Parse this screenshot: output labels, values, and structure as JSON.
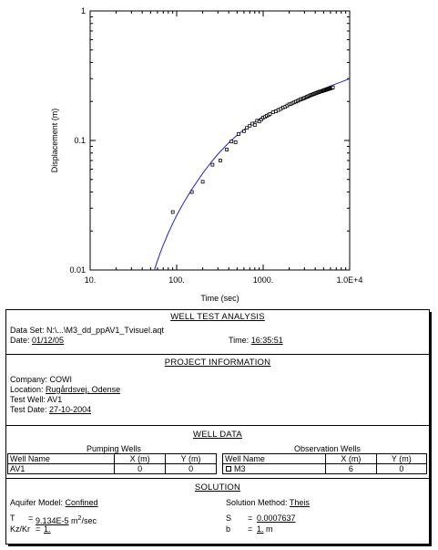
{
  "chart_data": {
    "type": "scatter",
    "title": "",
    "xlabel": "Time (sec)",
    "ylabel": "Displacement (m)",
    "x_scale": "log",
    "y_scale": "log",
    "xlim": [
      10,
      10000
    ],
    "ylim": [
      0.01,
      1
    ],
    "x_ticks": [
      {
        "value": 10,
        "label": "10."
      },
      {
        "value": 100,
        "label": "100."
      },
      {
        "value": 1000,
        "label": "1000."
      },
      {
        "value": 10000,
        "label": "1.0E+4"
      }
    ],
    "y_ticks": [
      {
        "value": 0.01,
        "label": "0.01"
      },
      {
        "value": 0.1,
        "label": "0.1"
      },
      {
        "value": 1,
        "label": "1"
      }
    ],
    "grid": false,
    "series": [
      {
        "kind": "points",
        "marker": "open-square",
        "color": "#000000",
        "x": [
          90,
          150,
          200,
          260,
          320,
          380,
          430,
          480,
          520,
          600,
          650,
          700,
          750,
          800,
          850,
          900,
          950,
          1000,
          1050,
          1100,
          1150,
          1200,
          1300,
          1400,
          1500,
          1600,
          1700,
          1800,
          1900,
          2000,
          2100,
          2200,
          2300,
          2400,
          2500,
          2600,
          2700,
          2800,
          2900,
          3000,
          3100,
          3200,
          3300,
          3400,
          3500,
          3600,
          3700,
          3800,
          3900,
          4000,
          4100,
          4200,
          4300,
          4400,
          4500,
          4600,
          4700,
          4800,
          4900,
          5000,
          5100,
          5200,
          5300,
          5400,
          5500,
          5600,
          5700,
          5800,
          5900,
          6000,
          6100,
          6200,
          6300,
          6400
        ],
        "y": [
          0.028,
          0.04,
          0.048,
          0.065,
          0.07,
          0.085,
          0.098,
          0.097,
          0.112,
          0.118,
          0.125,
          0.13,
          0.135,
          0.132,
          0.142,
          0.14,
          0.145,
          0.15,
          0.152,
          0.155,
          0.157,
          0.16,
          0.165,
          0.168,
          0.172,
          0.175,
          0.18,
          0.182,
          0.186,
          0.19,
          0.192,
          0.195,
          0.197,
          0.2,
          0.202,
          0.205,
          0.207,
          0.209,
          0.211,
          0.213,
          0.215,
          0.217,
          0.219,
          0.221,
          0.223,
          0.225,
          0.226,
          0.228,
          0.229,
          0.231,
          0.232,
          0.234,
          0.235,
          0.236,
          0.238,
          0.239,
          0.24,
          0.241,
          0.242,
          0.243,
          0.244,
          0.245,
          0.246,
          0.247,
          0.248,
          0.249,
          0.25,
          0.251,
          0.252,
          0.253,
          0.254,
          0.255,
          0.256,
          0.257
        ]
      },
      {
        "kind": "curve",
        "color": "#2222cc",
        "x": [
          55,
          60,
          65,
          70,
          80,
          90,
          100,
          120,
          150,
          200,
          250,
          300,
          400,
          500,
          600,
          800,
          1000,
          1500,
          2000,
          3000,
          4000,
          5000,
          6000,
          7000,
          8000,
          10000
        ],
        "y": [
          0.0099,
          0.0118,
          0.0137,
          0.0156,
          0.0193,
          0.0229,
          0.0264,
          0.0329,
          0.042,
          0.0557,
          0.0678,
          0.0784,
          0.0961,
          0.11,
          0.121,
          0.139,
          0.153,
          0.176,
          0.193,
          0.218,
          0.236,
          0.251,
          0.263,
          0.274,
          0.283,
          0.3
        ]
      }
    ]
  },
  "report": {
    "header": "WELL TEST ANALYSIS",
    "data_set_label": "Data Set:",
    "data_set_value": "N:\\...\\M3_dd_ppAV1_Tvisuel.aqt",
    "date_label": "Date:",
    "date_value": "01/12/05",
    "time_label": "Time:",
    "time_value": "16:35:51",
    "project_header": "PROJECT INFORMATION",
    "company_label": "Company:",
    "company_value": "COWI",
    "location_label": "Location:",
    "location_value": "Rugårdsvej, Odense",
    "test_well_label": "Test Well:",
    "test_well_value": "AV1",
    "test_date_label": "Test Date:",
    "test_date_value": "27-10-2004",
    "well_data_header": "WELL DATA",
    "pumping_caption": "Pumping Wells",
    "observation_caption": "Observation Wells",
    "col_well_name": "Well Name",
    "col_x": "X (m)",
    "col_y": "Y (m)",
    "pumping": {
      "name": "AV1",
      "x": "0",
      "y": "0"
    },
    "observation": {
      "name": "M3",
      "x": "6",
      "y": "0"
    },
    "solution_header": "SOLUTION",
    "aquifer_label": "Aquifer Model:",
    "aquifer_value": "Confined",
    "method_label": "Solution Method:",
    "method_value": "Theis",
    "T_label": "T",
    "T_eq": "=",
    "T_value": "9.134E-5",
    "T_unit_base": "m",
    "T_unit_exp": "2",
    "T_unit_tail": "/sec",
    "S_label": "S",
    "S_eq": "=",
    "S_value": "0.0007637",
    "kz_label": "Kz/Kr",
    "kz_eq": "=",
    "kz_value": "1.",
    "b_label": "b",
    "b_eq": "=",
    "b_value": "1.",
    "b_unit": "m"
  }
}
